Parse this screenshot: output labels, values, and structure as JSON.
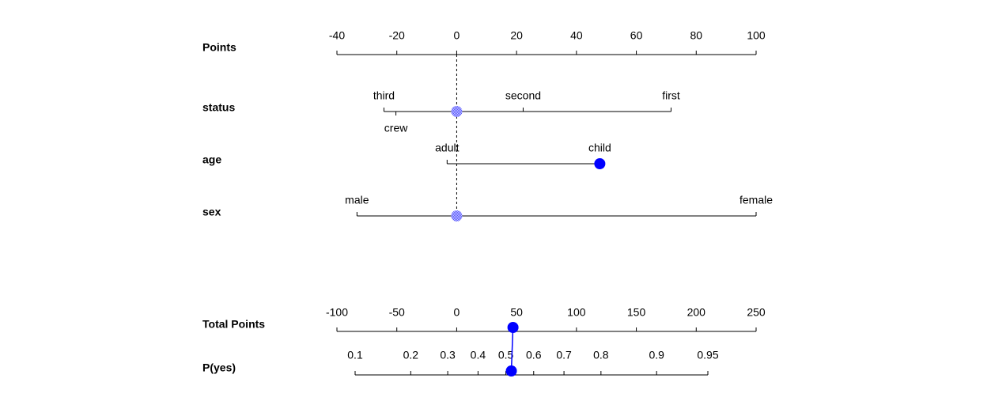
{
  "chart_data": {
    "type": "nomogram",
    "points_axis": {
      "label": "Points",
      "xlim": [
        -40,
        100
      ],
      "xticks": [
        -40,
        -20,
        0,
        20,
        40,
        60,
        80,
        100
      ]
    },
    "attributes": [
      {
        "name": "status",
        "marker": 0,
        "marker_style": "hatched",
        "values": [
          {
            "label": "third",
            "points": -24.3,
            "position": "above"
          },
          {
            "label": "crew",
            "points": -20.3,
            "position": "below"
          },
          {
            "label": "second",
            "points": 22.2,
            "position": "above"
          },
          {
            "label": "first",
            "points": 71.6,
            "position": "above"
          }
        ]
      },
      {
        "name": "age",
        "marker": 47.8,
        "marker_style": "solid",
        "values": [
          {
            "label": "adult",
            "points": -3.2,
            "position": "above"
          },
          {
            "label": "child",
            "points": 47.8,
            "position": "above"
          }
        ]
      },
      {
        "name": "sex",
        "marker": 0,
        "marker_style": "hatched",
        "values": [
          {
            "label": "male",
            "points": -33.3,
            "position": "above"
          },
          {
            "label": "female",
            "points": 100,
            "position": "above"
          }
        ]
      }
    ],
    "total_axis": {
      "label": "Total Points",
      "xlim": [
        -100,
        250
      ],
      "xticks": [
        -100,
        -50,
        0,
        50,
        100,
        150,
        200,
        250
      ],
      "value": 47
    },
    "probability_axis": {
      "label": "P(yes)",
      "scale": "logit",
      "xlim": [
        0.1,
        0.95
      ],
      "xticks": [
        0.1,
        0.2,
        0.3,
        0.4,
        0.5,
        0.6,
        0.7,
        0.8,
        0.9,
        0.95
      ],
      "value": 0.52
    },
    "color": "#0000ff"
  }
}
